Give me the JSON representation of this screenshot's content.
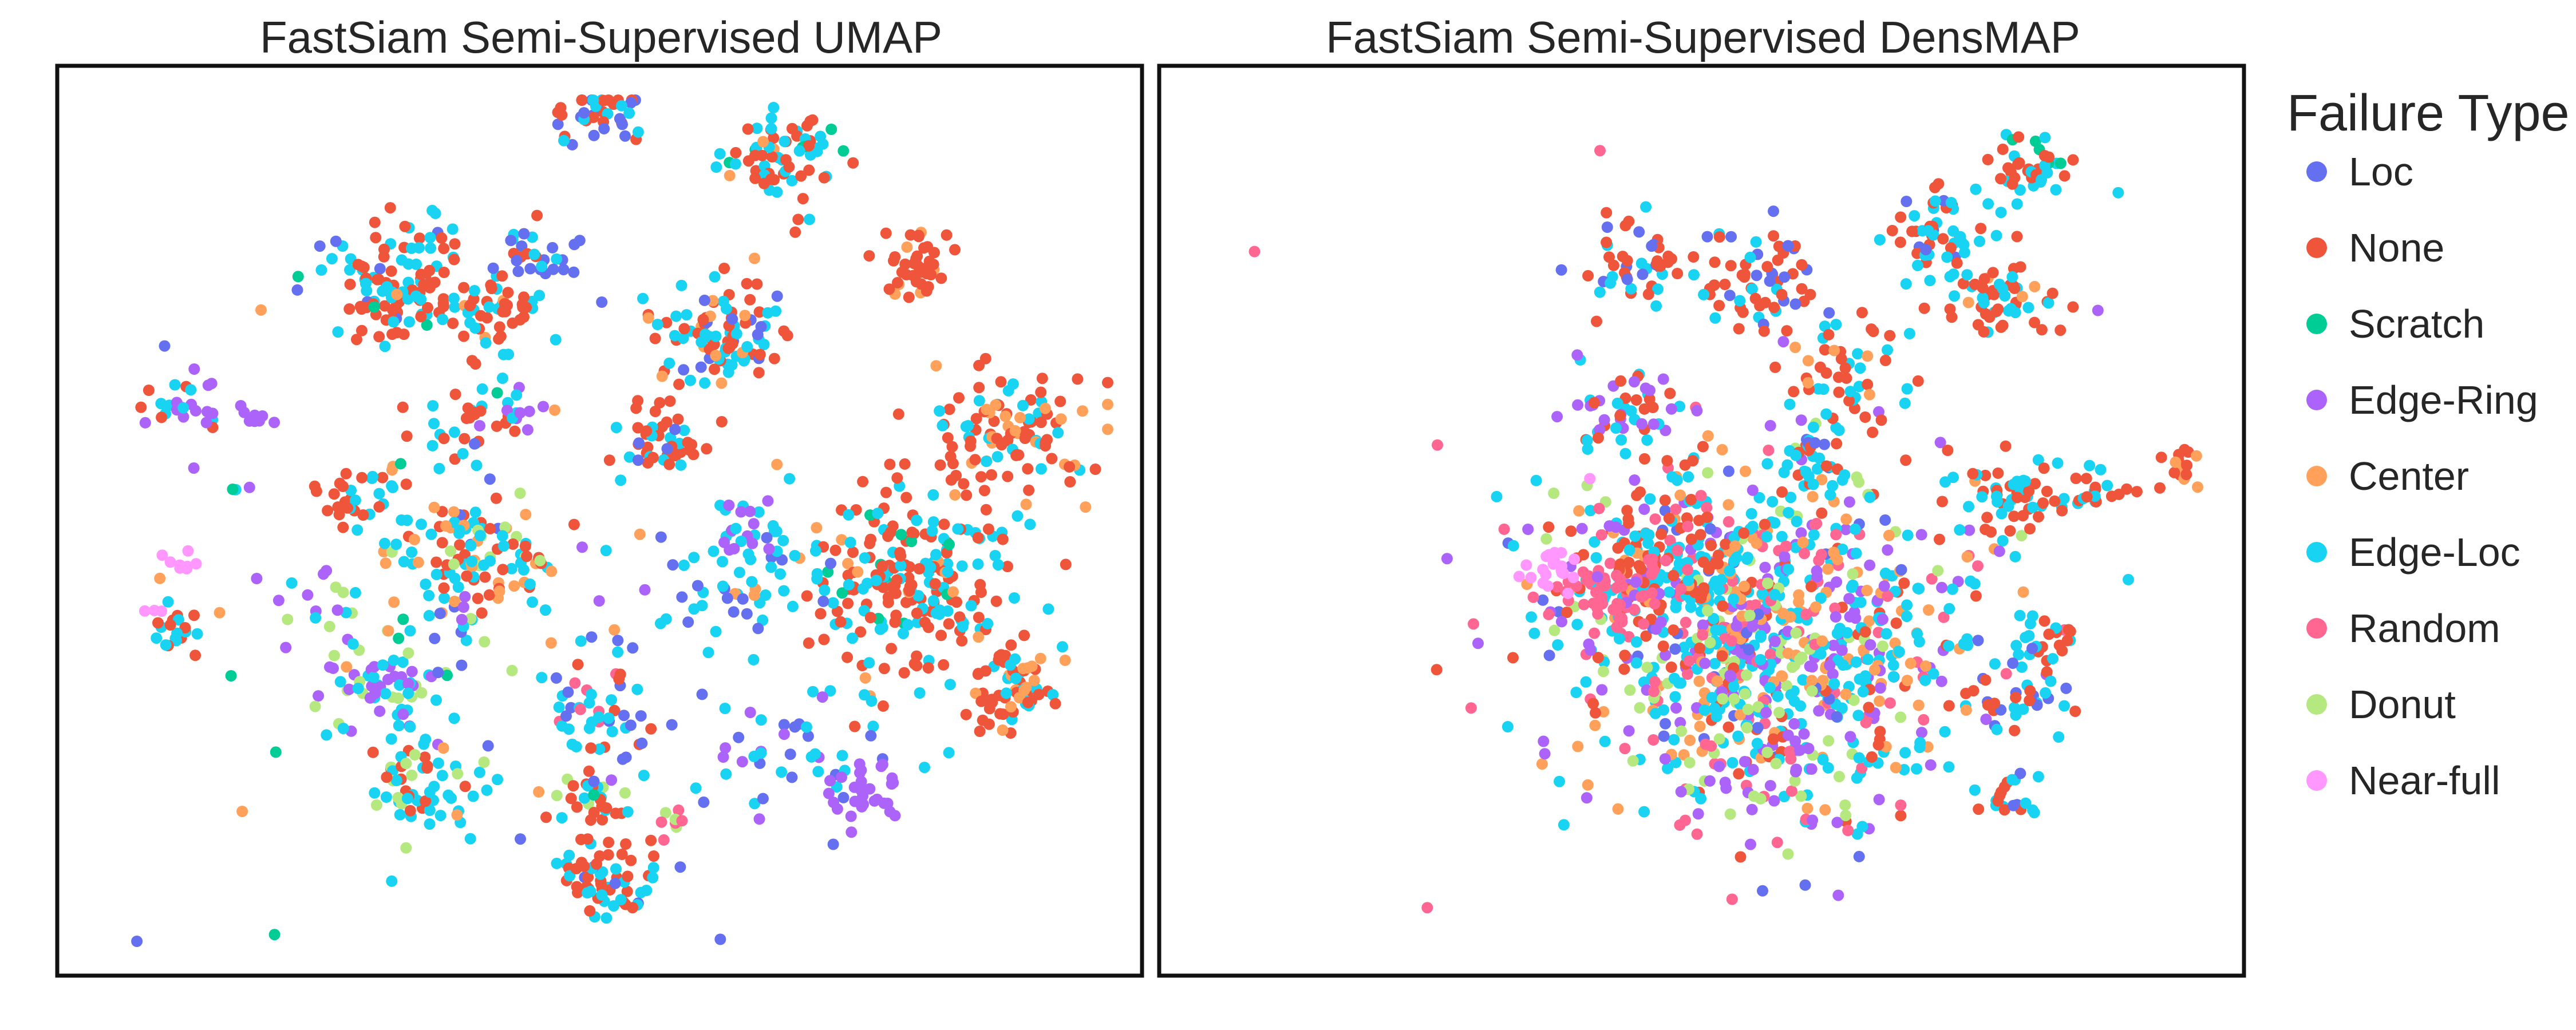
{
  "chart_data": [
    {
      "type": "scatter",
      "title": "FastSiam Semi-Supervised UMAP",
      "xlabel": "",
      "ylabel": "",
      "axes_ticks": "none",
      "grid": false,
      "clusters": [
        {
          "category": "None",
          "cx": 0.51,
          "cy": 0.93,
          "spread": 0.025,
          "n": 60,
          "mix": {
            "None": 0.6,
            "Edge-Loc": 0.3,
            "Loc": 0.1
          }
        },
        {
          "category": "None",
          "cx": 0.68,
          "cy": 0.07,
          "spread": 0.03,
          "n": 70,
          "mix": {
            "None": 0.55,
            "Edge-Loc": 0.3,
            "Scratch": 0.1,
            "Center": 0.05
          }
        },
        {
          "category": "None",
          "cx": 0.5,
          "cy": 0.02,
          "spread": 0.025,
          "n": 40,
          "mix": {
            "None": 0.5,
            "Loc": 0.3,
            "Edge-Loc": 0.2
          }
        },
        {
          "category": "None",
          "cx": 0.81,
          "cy": 0.2,
          "spread": 0.018,
          "n": 40,
          "mix": {
            "None": 0.8,
            "Center": 0.2
          }
        },
        {
          "category": "None",
          "cx": 0.91,
          "cy": 0.4,
          "spread": 0.04,
          "n": 110,
          "mix": {
            "None": 0.55,
            "Edge-Loc": 0.25,
            "Center": 0.2
          }
        },
        {
          "category": "None",
          "cx": 0.8,
          "cy": 0.57,
          "spread": 0.05,
          "n": 220,
          "mix": {
            "None": 0.55,
            "Edge-Loc": 0.3,
            "Scratch": 0.08,
            "Center": 0.07
          }
        },
        {
          "category": "Edge-Loc",
          "cx": 0.64,
          "cy": 0.57,
          "spread": 0.05,
          "n": 60,
          "mix": {
            "Edge-Loc": 0.7,
            "Loc": 0.2,
            "Center": 0.1
          }
        },
        {
          "category": "None",
          "cx": 0.9,
          "cy": 0.7,
          "spread": 0.025,
          "n": 70,
          "mix": {
            "None": 0.6,
            "Edge-Loc": 0.25,
            "Center": 0.15
          }
        },
        {
          "category": "None",
          "cx": 0.62,
          "cy": 0.28,
          "spread": 0.035,
          "n": 100,
          "mix": {
            "None": 0.4,
            "Edge-Loc": 0.35,
            "Loc": 0.15,
            "Center": 0.1
          }
        },
        {
          "category": "None",
          "cx": 0.3,
          "cy": 0.22,
          "spread": 0.035,
          "n": 120,
          "mix": {
            "None": 0.5,
            "Edge-Loc": 0.35,
            "Loc": 0.1,
            "Scratch": 0.05
          }
        },
        {
          "category": "None",
          "cx": 0.4,
          "cy": 0.26,
          "spread": 0.025,
          "n": 50,
          "mix": {
            "None": 0.5,
            "Edge-Loc": 0.4,
            "Center": 0.1
          }
        },
        {
          "category": "Loc",
          "cx": 0.44,
          "cy": 0.18,
          "spread": 0.025,
          "n": 30,
          "mix": {
            "Loc": 0.5,
            "None": 0.3,
            "Edge-Loc": 0.2
          }
        },
        {
          "category": "Edge-Loc",
          "cx": 0.38,
          "cy": 0.55,
          "spread": 0.04,
          "n": 120,
          "mix": {
            "Edge-Loc": 0.4,
            "None": 0.25,
            "Center": 0.2,
            "Donut": 0.1,
            "Loc": 0.05
          }
        },
        {
          "category": "Edge-Ring",
          "cx": 0.29,
          "cy": 0.69,
          "spread": 0.03,
          "n": 60,
          "mix": {
            "Edge-Ring": 0.4,
            "Edge-Loc": 0.4,
            "Donut": 0.2
          }
        },
        {
          "category": "Edge-Loc",
          "cx": 0.32,
          "cy": 0.81,
          "spread": 0.03,
          "n": 60,
          "mix": {
            "Edge-Loc": 0.5,
            "None": 0.3,
            "Donut": 0.2
          }
        },
        {
          "category": "Loc",
          "cx": 0.7,
          "cy": 0.78,
          "spread": 0.05,
          "n": 50,
          "mix": {
            "Loc": 0.4,
            "Edge-Ring": 0.3,
            "Edge-Loc": 0.3
          }
        },
        {
          "category": "Edge-Ring",
          "cx": 0.76,
          "cy": 0.82,
          "spread": 0.02,
          "n": 25,
          "mix": {
            "Edge-Ring": 1.0
          }
        },
        {
          "category": "Edge-Loc",
          "cx": 0.5,
          "cy": 0.73,
          "spread": 0.03,
          "n": 50,
          "mix": {
            "Edge-Loc": 0.45,
            "Loc": 0.2,
            "None": 0.2,
            "Random": 0.15
          }
        },
        {
          "category": "None",
          "cx": 0.49,
          "cy": 0.84,
          "spread": 0.02,
          "n": 30,
          "mix": {
            "None": 0.5,
            "Edge-Loc": 0.3,
            "Donut": 0.2
          }
        },
        {
          "category": "None",
          "cx": 0.26,
          "cy": 0.47,
          "spread": 0.02,
          "n": 30,
          "mix": {
            "None": 0.6,
            "Edge-Loc": 0.4
          }
        },
        {
          "category": "Edge-Loc",
          "cx": 0.08,
          "cy": 0.63,
          "spread": 0.012,
          "n": 20,
          "mix": {
            "Edge-Loc": 0.6,
            "None": 0.4
          }
        },
        {
          "category": "Edge-Ring",
          "cx": 0.09,
          "cy": 0.36,
          "spread": 0.02,
          "n": 25,
          "mix": {
            "Edge-Ring": 0.5,
            "Edge-Loc": 0.3,
            "None": 0.2
          }
        },
        {
          "category": "Near-full",
          "cx": 0.09,
          "cy": 0.55,
          "spread": 0.008,
          "n": 8,
          "mix": {
            "Near-full": 1.0
          }
        },
        {
          "category": "Near-full",
          "cx": 0.06,
          "cy": 0.61,
          "spread": 0.004,
          "n": 3,
          "mix": {
            "Near-full": 1.0
          }
        },
        {
          "category": "Edge-Loc",
          "cx": 0.37,
          "cy": 0.38,
          "spread": 0.03,
          "n": 30,
          "mix": {
            "Edge-Loc": 0.6,
            "None": 0.4
          }
        },
        {
          "category": "None",
          "cx": 0.56,
          "cy": 0.41,
          "spread": 0.025,
          "n": 30,
          "mix": {
            "None": 0.5,
            "Edge-Loc": 0.5
          }
        },
        {
          "category": "Edge-Loc",
          "cx": 0.22,
          "cy": 0.6,
          "spread": 0.03,
          "n": 20,
          "mix": {
            "Edge-Loc": 0.5,
            "Edge-Ring": 0.3,
            "Donut": 0.2
          }
        },
        {
          "category": "Loc",
          "cx": 0.35,
          "cy": 0.58,
          "spread": 0.15,
          "n": 60,
          "mix": {
            "Loc": 0.3,
            "Scratch": 0.2,
            "Center": 0.2,
            "Edge-Loc": 0.2,
            "Edge-Ring": 0.1
          }
        },
        {
          "category": "Edge-Ring",
          "cx": 0.16,
          "cy": 0.38,
          "spread": 0.01,
          "n": 8,
          "mix": {
            "Edge-Ring": 1.0
          }
        },
        {
          "category": "Edge-Ring",
          "cx": 0.42,
          "cy": 0.38,
          "spread": 0.02,
          "n": 12,
          "mix": {
            "Edge-Ring": 0.6,
            "Edge-Loc": 0.4
          }
        },
        {
          "category": "None",
          "cx": 0.56,
          "cy": 0.4,
          "spread": 0.02,
          "n": 15,
          "mix": {
            "None": 0.7,
            "Loc": 0.3
          }
        },
        {
          "category": "Edge-Ring",
          "cx": 0.63,
          "cy": 0.51,
          "spread": 0.02,
          "n": 15,
          "mix": {
            "Edge-Ring": 0.7,
            "Edge-Loc": 0.3
          }
        },
        {
          "category": "Donut",
          "cx": 0.57,
          "cy": 0.86,
          "spread": 0.01,
          "n": 8,
          "mix": {
            "Donut": 0.5,
            "Random": 0.5
          }
        }
      ]
    },
    {
      "type": "scatter",
      "title": "FastSiam Semi-Supervised DensMAP",
      "xlabel": "",
      "ylabel": "",
      "axes_ticks": "none",
      "grid": false,
      "clusters": [
        {
          "category": "Edge-Loc",
          "cx": 0.56,
          "cy": 0.63,
          "spread": 0.1,
          "n": 900,
          "mix": {
            "Edge-Loc": 0.32,
            "Edge-Ring": 0.2,
            "Center": 0.15,
            "Random": 0.1,
            "Donut": 0.1,
            "None": 0.08,
            "Loc": 0.05
          }
        },
        {
          "category": "None",
          "cx": 0.46,
          "cy": 0.54,
          "spread": 0.04,
          "n": 120,
          "mix": {
            "None": 0.45,
            "Edge-Loc": 0.3,
            "Center": 0.15,
            "Random": 0.1
          }
        },
        {
          "category": "Random",
          "cx": 0.41,
          "cy": 0.58,
          "spread": 0.03,
          "n": 60,
          "mix": {
            "Random": 0.8,
            "Edge-Ring": 0.2
          }
        },
        {
          "category": "Near-full",
          "cx": 0.35,
          "cy": 0.56,
          "spread": 0.012,
          "n": 20,
          "mix": {
            "Near-full": 1.0
          }
        },
        {
          "category": "None",
          "cx": 0.8,
          "cy": 0.24,
          "spread": 0.025,
          "n": 50,
          "mix": {
            "None": 0.55,
            "Edge-Loc": 0.35,
            "Center": 0.1
          }
        },
        {
          "category": "None",
          "cx": 0.81,
          "cy": 0.47,
          "spread": 0.03,
          "n": 60,
          "mix": {
            "Edge-Loc": 0.5,
            "None": 0.4,
            "Edge-Ring": 0.1
          }
        },
        {
          "category": "None",
          "cx": 0.82,
          "cy": 0.08,
          "spread": 0.02,
          "n": 40,
          "mix": {
            "None": 0.6,
            "Edge-Loc": 0.3,
            "Scratch": 0.1
          }
        },
        {
          "category": "Edge-Loc",
          "cx": 0.74,
          "cy": 0.16,
          "spread": 0.03,
          "n": 60,
          "mix": {
            "Edge-Loc": 0.5,
            "None": 0.4,
            "Loc": 0.1
          }
        },
        {
          "category": "None",
          "cx": 0.56,
          "cy": 0.22,
          "spread": 0.03,
          "n": 60,
          "mix": {
            "None": 0.5,
            "Edge-Loc": 0.3,
            "Loc": 0.2
          }
        },
        {
          "category": "None",
          "cx": 0.44,
          "cy": 0.2,
          "spread": 0.025,
          "n": 50,
          "mix": {
            "None": 0.5,
            "Edge-Loc": 0.3,
            "Loc": 0.2
          }
        },
        {
          "category": "None",
          "cx": 0.64,
          "cy": 0.32,
          "spread": 0.03,
          "n": 50,
          "mix": {
            "None": 0.6,
            "Edge-Loc": 0.25,
            "Center": 0.15
          }
        },
        {
          "category": "Edge-Ring",
          "cx": 0.42,
          "cy": 0.37,
          "spread": 0.025,
          "n": 50,
          "mix": {
            "Edge-Ring": 0.4,
            "Edge-Loc": 0.3,
            "None": 0.3
          }
        },
        {
          "category": "None",
          "cx": 0.89,
          "cy": 0.46,
          "spread": 0.015,
          "n": 20,
          "mix": {
            "None": 0.7,
            "Edge-Loc": 0.3
          }
        },
        {
          "category": "None",
          "cx": 0.84,
          "cy": 0.64,
          "spread": 0.015,
          "n": 20,
          "mix": {
            "None": 0.5,
            "Edge-Loc": 0.5
          }
        },
        {
          "category": "None",
          "cx": 0.97,
          "cy": 0.44,
          "spread": 0.012,
          "n": 15,
          "mix": {
            "None": 0.7,
            "Center": 0.3
          }
        },
        {
          "category": "Edge-Loc",
          "cx": 0.8,
          "cy": 0.83,
          "spread": 0.015,
          "n": 20,
          "mix": {
            "Edge-Loc": 0.5,
            "None": 0.3,
            "Loc": 0.2
          }
        },
        {
          "category": "Edge-Loc",
          "cx": 0.81,
          "cy": 0.7,
          "spread": 0.03,
          "n": 40,
          "mix": {
            "Edge-Loc": 0.4,
            "Loc": 0.3,
            "None": 0.3
          }
        },
        {
          "category": "None",
          "cx": 0.61,
          "cy": 0.43,
          "spread": 0.02,
          "n": 30,
          "mix": {
            "None": 0.5,
            "Edge-Loc": 0.3,
            "Loc": 0.2
          }
        },
        {
          "category": "Edge-Ring",
          "cx": 0.57,
          "cy": 0.8,
          "spread": 0.05,
          "n": 60,
          "mix": {
            "Edge-Ring": 0.4,
            "Donut": 0.3,
            "Random": 0.2,
            "None": 0.1
          }
        }
      ],
      "outliers": [
        {
          "category": "Random",
          "x": 0.4,
          "y": 0.06
        },
        {
          "category": "Random",
          "x": 0.06,
          "y": 0.18
        },
        {
          "category": "Random",
          "x": 0.24,
          "y": 0.41
        },
        {
          "category": "Random",
          "x": 0.23,
          "y": 0.96
        },
        {
          "category": "Edge-Loc",
          "x": 0.73,
          "y": 0.12
        },
        {
          "category": "Edge-Loc",
          "x": 0.91,
          "y": 0.11
        },
        {
          "category": "Edge-Loc",
          "x": 0.36,
          "y": 0.81
        },
        {
          "category": "Edge-Loc",
          "x": 0.92,
          "y": 0.57
        },
        {
          "category": "Edge-Ring",
          "x": 0.89,
          "y": 0.25
        },
        {
          "category": "Loc",
          "x": 0.56,
          "y": 0.94
        },
        {
          "category": "Random",
          "x": 0.53,
          "y": 0.95
        },
        {
          "category": "Near-full",
          "x": 0.39,
          "y": 0.45
        }
      ]
    }
  ],
  "legend": {
    "title": "Failure Type",
    "items": [
      {
        "label": "Loc",
        "color": "#6470f0"
      },
      {
        "label": "None",
        "color": "#ef553b"
      },
      {
        "label": "Scratch",
        "color": "#00cc96"
      },
      {
        "label": "Edge-Ring",
        "color": "#ab63fa"
      },
      {
        "label": "Center",
        "color": "#ffa15a"
      },
      {
        "label": "Edge-Loc",
        "color": "#19d3f3"
      },
      {
        "label": "Random",
        "color": "#ff6692"
      },
      {
        "label": "Donut",
        "color": "#b6e880"
      },
      {
        "label": "Near-full",
        "color": "#ff97ff"
      }
    ]
  }
}
